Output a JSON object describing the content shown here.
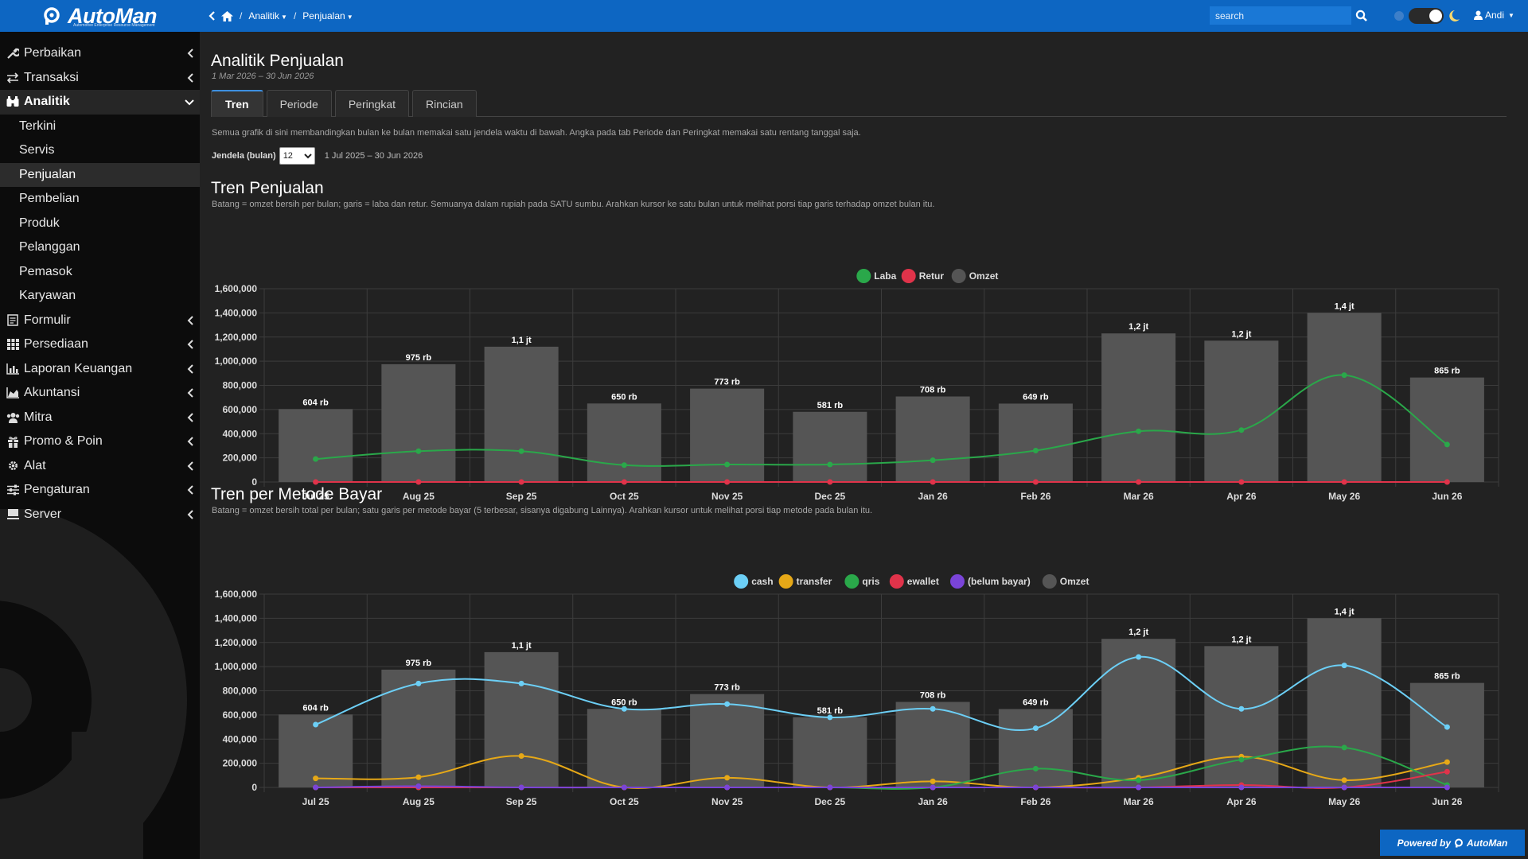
{
  "brand": {
    "name": "AutoMan",
    "tagline": "Automotive Enterprise Resource Management",
    "powered_prefix": "Powered by",
    "powered_brand": "AutoMan"
  },
  "breadcrumb": {
    "analitik": "Analitik",
    "penjualan": "Penjualan"
  },
  "search": {
    "placeholder": "search"
  },
  "user": {
    "name": "Andi"
  },
  "sidebar": {
    "items": [
      {
        "label": "Perbaikan",
        "icon": "wrench-icon"
      },
      {
        "label": "Transaksi",
        "icon": "exchange-icon"
      },
      {
        "label": "Analitik",
        "icon": "binoculars-icon"
      },
      {
        "label": "Formulir",
        "icon": "form-icon"
      },
      {
        "label": "Persediaan",
        "icon": "grid-icon"
      },
      {
        "label": "Laporan Keuangan",
        "icon": "bar-chart-icon"
      },
      {
        "label": "Akuntansi",
        "icon": "area-chart-icon"
      },
      {
        "label": "Mitra",
        "icon": "users-icon"
      },
      {
        "label": "Promo & Poin",
        "icon": "gift-icon"
      },
      {
        "label": "Alat",
        "icon": "cog-icon"
      },
      {
        "label": "Pengaturan",
        "icon": "sliders-icon"
      },
      {
        "label": "Server",
        "icon": "server-icon"
      }
    ],
    "analitik_sub": [
      "Terkini",
      "Servis",
      "Penjualan",
      "Pembelian",
      "Produk",
      "Pelanggan",
      "Pemasok",
      "Karyawan"
    ]
  },
  "page": {
    "title": "Analitik Penjualan",
    "daterange": "1 Mar 2026 – 30 Jun 2026"
  },
  "tabs": [
    "Tren",
    "Periode",
    "Peringkat",
    "Rincian"
  ],
  "intro": "Semua grafik di sini membandingkan bulan ke bulan memakai satu jendela waktu di bawah. Angka pada tab Periode dan Peringkat memakai satu rentang tanggal saja.",
  "window": {
    "label": "Jendela (bulan)",
    "value": "12",
    "range": "1 Jul 2025 – 30 Jun 2026"
  },
  "section1": {
    "title": "Tren Penjualan",
    "desc": "Batang = omzet bersih per bulan; garis = laba dan retur. Semuanya dalam rupiah pada SATU sumbu. Arahkan kursor ke satu bulan untuk melihat porsi tiap garis terhadap omzet bulan itu."
  },
  "section2": {
    "title": "Tren per Metode Bayar",
    "desc": "Batang = omzet bersih total per bulan; satu garis per metode bayar (5 terbesar, sisanya digabung Lainnya). Arahkan kursor untuk melihat porsi tiap metode pada bulan itu."
  },
  "chart_data": [
    {
      "type": "bar",
      "title": "Tren Penjualan",
      "categories": [
        "Jul 25",
        "Aug 25",
        "Sep 25",
        "Oct 25",
        "Nov 25",
        "Dec 25",
        "Jan 26",
        "Feb 26",
        "Mar 26",
        "Apr 26",
        "May 26",
        "Jun 26"
      ],
      "bar_labels": [
        "604 rb",
        "975 rb",
        "1,1 jt",
        "650 rb",
        "773 rb",
        "581 rb",
        "708 rb",
        "649 rb",
        "1,2 jt",
        "1,2 jt",
        "1,4 jt",
        "865 rb"
      ],
      "series": [
        {
          "name": "Omzet",
          "kind": "bar",
          "color": "#555555",
          "values": [
            604000,
            975000,
            1120000,
            650000,
            773000,
            581000,
            708000,
            649000,
            1230000,
            1170000,
            1400000,
            865000
          ]
        },
        {
          "name": "Laba",
          "kind": "line",
          "color": "#2aa84a",
          "values": [
            190000,
            255000,
            255000,
            140000,
            145000,
            145000,
            180000,
            260000,
            420000,
            430000,
            885000,
            310000
          ]
        },
        {
          "name": "Retur",
          "kind": "line",
          "color": "#e0334a",
          "values": [
            0,
            0,
            0,
            0,
            0,
            0,
            0,
            0,
            0,
            0,
            0,
            0
          ]
        }
      ],
      "legend_order": [
        "Laba",
        "Retur",
        "Omzet"
      ],
      "ylim": [
        0,
        1600000
      ],
      "yticks": [
        "0",
        "200,000",
        "400,000",
        "600,000",
        "800,000",
        "1,000,000",
        "1,200,000",
        "1,400,000",
        "1,600,000"
      ],
      "legend_position": "top-center",
      "grid": true
    },
    {
      "type": "bar",
      "title": "Tren per Metode Bayar",
      "categories": [
        "Jul 25",
        "Aug 25",
        "Sep 25",
        "Oct 25",
        "Nov 25",
        "Dec 25",
        "Jan 26",
        "Feb 26",
        "Mar 26",
        "Apr 26",
        "May 26",
        "Jun 26"
      ],
      "bar_labels": [
        "604 rb",
        "975 rb",
        "1,1 jt",
        "650 rb",
        "773 rb",
        "581 rb",
        "708 rb",
        "649 rb",
        "1,2 jt",
        "1,2 jt",
        "1,4 jt",
        "865 rb"
      ],
      "series": [
        {
          "name": "Omzet",
          "kind": "bar",
          "color": "#555555",
          "values": [
            604000,
            975000,
            1120000,
            650000,
            773000,
            581000,
            708000,
            649000,
            1230000,
            1170000,
            1400000,
            865000
          ]
        },
        {
          "name": "cash",
          "kind": "line",
          "color": "#6ccff6",
          "values": [
            520000,
            860000,
            860000,
            650000,
            690000,
            580000,
            650000,
            490000,
            1080000,
            650000,
            1010000,
            500000
          ]
        },
        {
          "name": "transfer",
          "kind": "line",
          "color": "#e6a817",
          "values": [
            75000,
            85000,
            260000,
            0,
            80000,
            0,
            50000,
            0,
            80000,
            255000,
            60000,
            210000
          ]
        },
        {
          "name": "qris",
          "kind": "line",
          "color": "#2aa84a",
          "values": [
            0,
            0,
            0,
            0,
            0,
            0,
            0,
            155000,
            60000,
            230000,
            330000,
            20000
          ]
        },
        {
          "name": "ewallet",
          "kind": "line",
          "color": "#e0334a",
          "values": [
            0,
            0,
            0,
            0,
            0,
            0,
            0,
            0,
            0,
            20000,
            0,
            130000
          ]
        },
        {
          "name": "(belum bayar)",
          "kind": "line",
          "color": "#7a44d8",
          "values": [
            0,
            10000,
            0,
            0,
            0,
            0,
            0,
            0,
            0,
            0,
            0,
            0
          ]
        }
      ],
      "legend_order": [
        "cash",
        "transfer",
        "qris",
        "ewallet",
        "(belum bayar)",
        "Omzet"
      ],
      "ylim": [
        0,
        1600000
      ],
      "yticks": [
        "0",
        "200,000",
        "400,000",
        "600,000",
        "800,000",
        "1,000,000",
        "1,200,000",
        "1,400,000",
        "1,600,000"
      ],
      "legend_position": "top-center",
      "grid": true
    }
  ]
}
